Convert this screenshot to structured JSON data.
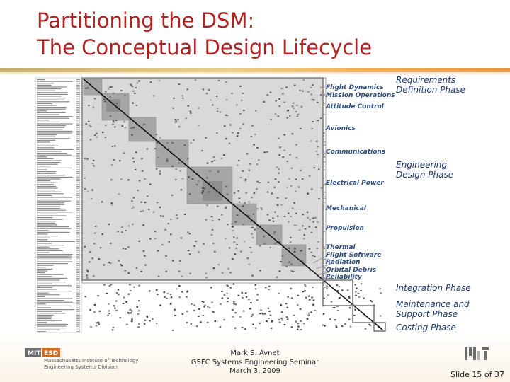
{
  "slide": {
    "title_line1": "Partitioning the DSM:",
    "title_line2": "The Conceptual Design Lifecycle",
    "accent_color": "#b22222"
  },
  "matrix": {
    "module_labels": [
      "Flight Dynamics",
      "Mission Operations",
      "Attitude Control",
      "Avionics",
      "Communications",
      "Electrical Power",
      "Mechanical",
      "Propulsion",
      "Thermal",
      "Flight Software",
      "Radiation",
      "Orbital Debris",
      "Reliability"
    ]
  },
  "phases": {
    "requirements": "Requirements Definition Phase",
    "engineering": "Engineering Design Phase",
    "integration": "Integration Phase",
    "maintenance": "Maintenance and Support Phase",
    "costing": "Costing Phase"
  },
  "footer": {
    "author": "Mark S. Avnet",
    "event": "GSFC Systems Engineering Seminar",
    "date": "March 3, 2009",
    "slide_number": "Slide 15 of 37"
  },
  "logos": {
    "left_mit": "MIT",
    "left_esd": "ESD",
    "left_line1": "Massachusetts Institute of Technology",
    "left_line2": "Engineering Systems Division"
  }
}
